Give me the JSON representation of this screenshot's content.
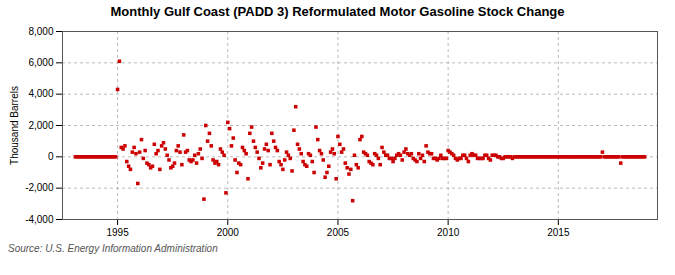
{
  "chart_data": {
    "type": "scatter",
    "title": "Monthly Gulf Coast (PADD 3) Reformulated Motor Gasoline Stock Change",
    "ylabel": "Thousand Barrels",
    "source": "Source: U.S. Energy Information Administration",
    "color": "#cc0000",
    "marker": "square",
    "grid": true,
    "xlim": [
      1992.5,
      2019.5
    ],
    "xticks": [
      1995,
      2000,
      2005,
      2010,
      2015
    ],
    "ylim": [
      -4000,
      8000
    ],
    "yticks": [
      {
        "value": -4000,
        "label": "-4,000"
      },
      {
        "value": -2000,
        "label": "-2,000"
      },
      0,
      {
        "value": 2000,
        "label": "2,000"
      },
      {
        "value": 4000,
        "label": "4,000"
      },
      {
        "value": 6000,
        "label": "6,000"
      },
      {
        "value": 8000,
        "label": "8,000"
      }
    ],
    "x": [
      1993.083,
      1993.167,
      1993.25,
      1993.333,
      1993.417,
      1993.5,
      1993.583,
      1993.667,
      1993.75,
      1993.833,
      1993.917,
      1994.0,
      1994.083,
      1994.167,
      1994.25,
      1994.333,
      1994.417,
      1994.5,
      1994.583,
      1994.667,
      1994.75,
      1994.833,
      1994.917,
      1995.0,
      1995.083,
      1995.167,
      1995.25,
      1995.333,
      1995.417,
      1995.5,
      1995.583,
      1995.667,
      1995.75,
      1995.833,
      1995.917,
      1996.0,
      1996.083,
      1996.167,
      1996.25,
      1996.333,
      1996.417,
      1996.5,
      1996.583,
      1996.667,
      1996.75,
      1996.833,
      1996.917,
      1997.0,
      1997.083,
      1997.167,
      1997.25,
      1997.333,
      1997.417,
      1997.5,
      1997.583,
      1997.667,
      1997.75,
      1997.833,
      1997.917,
      1998.0,
      1998.083,
      1998.167,
      1998.25,
      1998.333,
      1998.417,
      1998.5,
      1998.583,
      1998.667,
      1998.75,
      1998.833,
      1998.917,
      1999.0,
      1999.083,
      1999.167,
      1999.25,
      1999.333,
      1999.417,
      1999.5,
      1999.583,
      1999.667,
      1999.75,
      1999.833,
      1999.917,
      2000.0,
      2000.083,
      2000.167,
      2000.25,
      2000.333,
      2000.417,
      2000.5,
      2000.583,
      2000.667,
      2000.75,
      2000.833,
      2000.917,
      2001.0,
      2001.083,
      2001.167,
      2001.25,
      2001.333,
      2001.417,
      2001.5,
      2001.583,
      2001.667,
      2001.75,
      2001.833,
      2001.917,
      2002.0,
      2002.083,
      2002.167,
      2002.25,
      2002.333,
      2002.417,
      2002.5,
      2002.583,
      2002.667,
      2002.75,
      2002.833,
      2002.917,
      2003.0,
      2003.083,
      2003.167,
      2003.25,
      2003.333,
      2003.417,
      2003.5,
      2003.583,
      2003.667,
      2003.75,
      2003.833,
      2003.917,
      2004.0,
      2004.083,
      2004.167,
      2004.25,
      2004.333,
      2004.417,
      2004.5,
      2004.583,
      2004.667,
      2004.75,
      2004.833,
      2004.917,
      2005.0,
      2005.083,
      2005.167,
      2005.25,
      2005.333,
      2005.417,
      2005.5,
      2005.583,
      2005.667,
      2005.75,
      2005.833,
      2005.917,
      2006.0,
      2006.083,
      2006.167,
      2006.25,
      2006.333,
      2006.417,
      2006.5,
      2006.583,
      2006.667,
      2006.75,
      2006.833,
      2006.917,
      2007.0,
      2007.083,
      2007.167,
      2007.25,
      2007.333,
      2007.417,
      2007.5,
      2007.583,
      2007.667,
      2007.75,
      2007.833,
      2007.917,
      2008.0,
      2008.083,
      2008.167,
      2008.25,
      2008.333,
      2008.417,
      2008.5,
      2008.583,
      2008.667,
      2008.75,
      2008.833,
      2008.917,
      2009.0,
      2009.083,
      2009.167,
      2009.25,
      2009.333,
      2009.417,
      2009.5,
      2009.583,
      2009.667,
      2009.75,
      2009.833,
      2009.917,
      2010.0,
      2010.083,
      2010.167,
      2010.25,
      2010.333,
      2010.417,
      2010.5,
      2010.583,
      2010.667,
      2010.75,
      2010.833,
      2010.917,
      2011.0,
      2011.083,
      2011.167,
      2011.25,
      2011.333,
      2011.417,
      2011.5,
      2011.583,
      2011.667,
      2011.75,
      2011.833,
      2011.917,
      2012.0,
      2012.083,
      2012.167,
      2012.25,
      2012.333,
      2012.417,
      2012.5,
      2012.583,
      2012.667,
      2012.75,
      2012.833,
      2012.917,
      2013.0,
      2013.083,
      2013.167,
      2013.25,
      2013.333,
      2013.417,
      2013.5,
      2013.583,
      2013.667,
      2013.75,
      2013.833,
      2013.917,
      2014.0,
      2014.083,
      2014.167,
      2014.25,
      2014.333,
      2014.417,
      2014.5,
      2014.583,
      2014.667,
      2014.75,
      2014.833,
      2014.917,
      2015.0,
      2015.083,
      2015.167,
      2015.25,
      2015.333,
      2015.417,
      2015.5,
      2015.583,
      2015.667,
      2015.75,
      2015.833,
      2015.917,
      2016.0,
      2016.083,
      2016.167,
      2016.25,
      2016.333,
      2016.417,
      2016.5,
      2016.583,
      2016.667,
      2016.75,
      2016.833,
      2016.917,
      2017.0,
      2017.083,
      2017.167,
      2017.25,
      2017.333,
      2017.417,
      2017.5,
      2017.583,
      2017.667,
      2017.75,
      2017.833,
      2017.917,
      2018.0,
      2018.083,
      2018.167,
      2018.25,
      2018.333,
      2018.417,
      2018.5,
      2018.583,
      2018.667,
      2018.75,
      2018.833,
      2018.917
    ],
    "values": [
      0,
      0,
      0,
      0,
      0,
      0,
      0,
      0,
      0,
      0,
      0,
      0,
      0,
      0,
      0,
      0,
      0,
      0,
      0,
      0,
      0,
      0,
      0,
      4300,
      6100,
      600,
      500,
      700,
      -300,
      -600,
      -800,
      300,
      600,
      200,
      -1700,
      300,
      1100,
      -100,
      400,
      -400,
      -500,
      -700,
      -600,
      800,
      200,
      400,
      -800,
      700,
      900,
      500,
      100,
      -200,
      -700,
      -600,
      -400,
      400,
      700,
      300,
      -500,
      1400,
      300,
      400,
      -200,
      -300,
      -200,
      100,
      -400,
      200,
      500,
      -100,
      -2700,
      2000,
      1000,
      1500,
      700,
      -200,
      -400,
      -300,
      -500,
      500,
      300,
      100,
      -2300,
      2200,
      1800,
      700,
      1200,
      -200,
      -1000,
      -400,
      -500,
      600,
      400,
      200,
      -1400,
      1500,
      1900,
      1000,
      600,
      300,
      -100,
      -700,
      -400,
      500,
      800,
      400,
      -500,
      1500,
      1000,
      600,
      400,
      -300,
      -500,
      -800,
      -200,
      300,
      100,
      -100,
      -900,
      1700,
      3200,
      800,
      500,
      200,
      -300,
      -500,
      -600,
      200,
      100,
      -300,
      -1000,
      1900,
      1100,
      400,
      200,
      -200,
      -1300,
      -1000,
      -600,
      300,
      500,
      200,
      -1400,
      1300,
      800,
      300,
      500,
      -400,
      -700,
      -1100,
      -800,
      -2800,
      100,
      -500,
      -700,
      1100,
      1300,
      300,
      200,
      100,
      -300,
      -400,
      -500,
      200,
      100,
      -100,
      -500,
      600,
      300,
      100,
      100,
      -100,
      -100,
      -300,
      -100,
      100,
      200,
      100,
      -200,
      300,
      500,
      200,
      100,
      200,
      -100,
      -200,
      -300,
      200,
      -100,
      100,
      -300,
      700,
      300,
      200,
      200,
      -100,
      -100,
      -200,
      -100,
      100,
      -100,
      -100,
      -100,
      400,
      300,
      200,
      100,
      -100,
      -200,
      -100,
      -100,
      100,
      100,
      -100,
      -300,
      100,
      200,
      100,
      100,
      -100,
      -100,
      -100,
      -100,
      100,
      100,
      -100,
      -200,
      100,
      100,
      100,
      0,
      0,
      -100,
      -100,
      0,
      0,
      0,
      0,
      -100,
      0,
      0,
      0,
      0,
      0,
      0,
      0,
      0,
      0,
      0,
      0,
      0,
      0,
      0,
      0,
      0,
      0,
      0,
      0,
      0,
      0,
      0,
      0,
      0,
      0,
      0,
      0,
      0,
      0,
      0,
      0,
      0,
      0,
      0,
      0,
      0,
      0,
      0,
      0,
      0,
      0,
      0,
      0,
      0,
      0,
      0,
      0,
      0,
      300,
      0,
      0,
      0,
      0,
      0,
      0,
      0,
      0,
      0,
      -400,
      0,
      0,
      0,
      0,
      0,
      0,
      0,
      0,
      0,
      0,
      0,
      0,
      0
    ]
  }
}
